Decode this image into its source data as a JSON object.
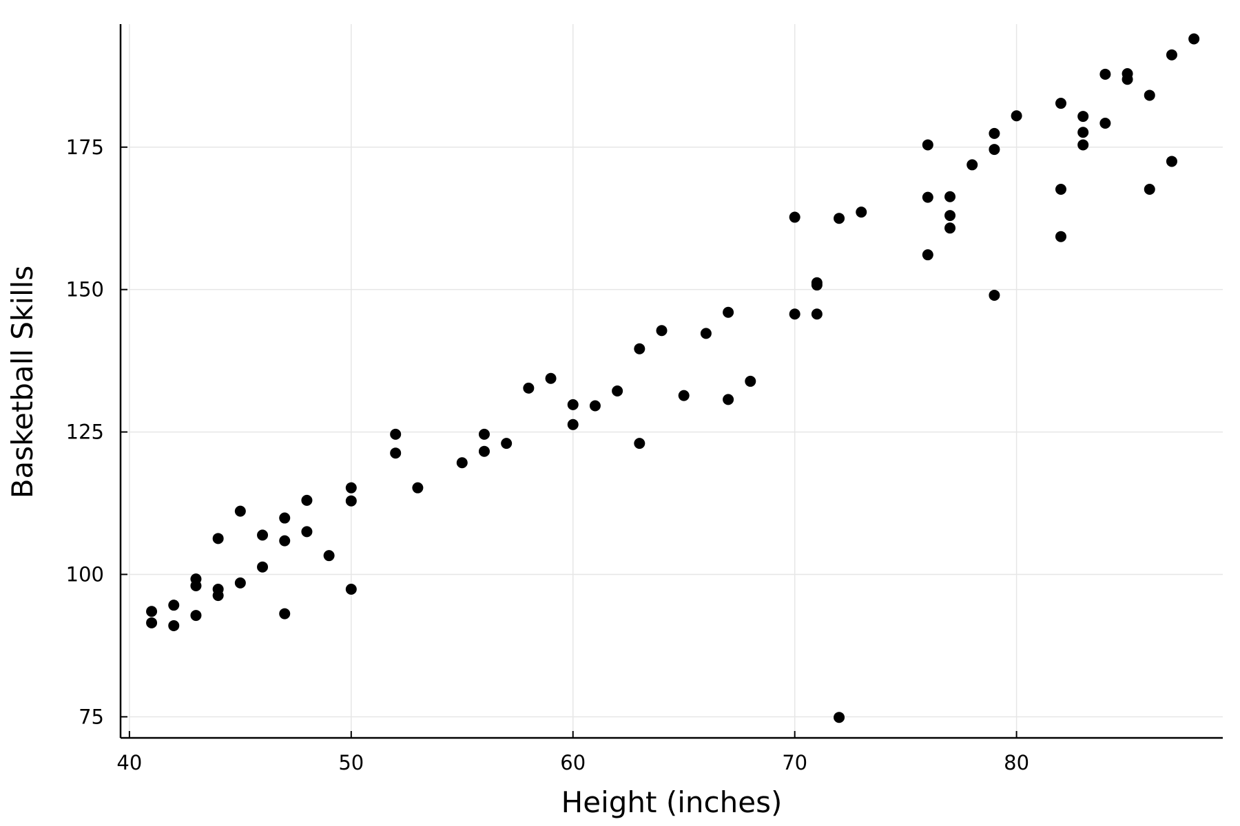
{
  "chart_data": {
    "type": "scatter",
    "xlabel": "Height (inches)",
    "ylabel": "Basketball Skills",
    "xlim": [
      39.6,
      89.3
    ],
    "ylim": [
      71.3,
      196.6
    ],
    "xticks": [
      40,
      50,
      60,
      70,
      80
    ],
    "yticks": [
      75,
      100,
      125,
      150,
      175
    ],
    "grid": true,
    "legend": "none",
    "marker_color": "#000000",
    "series": [
      {
        "points": [
          [
            41,
            93.5
          ],
          [
            41,
            91.5
          ],
          [
            42,
            94.6
          ],
          [
            42,
            91.0
          ],
          [
            43,
            99.2
          ],
          [
            43,
            98.0
          ],
          [
            43,
            92.8
          ],
          [
            44,
            106.3
          ],
          [
            44,
            97.4
          ],
          [
            44,
            96.3
          ],
          [
            45,
            111.1
          ],
          [
            45,
            98.5
          ],
          [
            46,
            106.9
          ],
          [
            46,
            101.3
          ],
          [
            47,
            109.9
          ],
          [
            47,
            105.9
          ],
          [
            47,
            93.1
          ],
          [
            48,
            113.0
          ],
          [
            48,
            107.5
          ],
          [
            49,
            103.3
          ],
          [
            50,
            115.2
          ],
          [
            50,
            112.9
          ],
          [
            50,
            97.4
          ],
          [
            52,
            124.6
          ],
          [
            52,
            121.3
          ],
          [
            53,
            115.2
          ],
          [
            55,
            119.6
          ],
          [
            56,
            124.6
          ],
          [
            56,
            121.6
          ],
          [
            57,
            123.0
          ],
          [
            58,
            132.7
          ],
          [
            59,
            134.4
          ],
          [
            60,
            129.8
          ],
          [
            60,
            126.3
          ],
          [
            61,
            129.6
          ],
          [
            62,
            132.2
          ],
          [
            63,
            139.6
          ],
          [
            63,
            123.0
          ],
          [
            64,
            142.8
          ],
          [
            65,
            131.4
          ],
          [
            66,
            142.3
          ],
          [
            67,
            146.0
          ],
          [
            67,
            130.7
          ],
          [
            68,
            133.9
          ],
          [
            70,
            162.7
          ],
          [
            70,
            145.7
          ],
          [
            71,
            151.2
          ],
          [
            71,
            150.8
          ],
          [
            71,
            145.7
          ],
          [
            72,
            162.5
          ],
          [
            72,
            74.9
          ],
          [
            73,
            163.6
          ],
          [
            76,
            175.4
          ],
          [
            76,
            166.2
          ],
          [
            76,
            156.1
          ],
          [
            77,
            166.3
          ],
          [
            77,
            163.0
          ],
          [
            77,
            160.8
          ],
          [
            78,
            171.9
          ],
          [
            79,
            177.4
          ],
          [
            79,
            174.6
          ],
          [
            79,
            149.0
          ],
          [
            80,
            180.5
          ],
          [
            82,
            182.7
          ],
          [
            82,
            167.6
          ],
          [
            82,
            159.3
          ],
          [
            83,
            180.4
          ],
          [
            83,
            177.6
          ],
          [
            83,
            175.4
          ],
          [
            84,
            187.8
          ],
          [
            84,
            179.2
          ],
          [
            85,
            187.9
          ],
          [
            85,
            186.9
          ],
          [
            86,
            184.1
          ],
          [
            86,
            167.6
          ],
          [
            87,
            191.2
          ],
          [
            87,
            172.5
          ],
          [
            88,
            194.0
          ]
        ]
      }
    ]
  }
}
